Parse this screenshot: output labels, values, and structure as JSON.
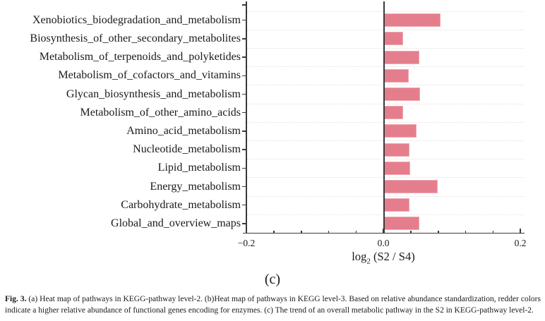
{
  "chart_data": {
    "type": "bar",
    "orientation": "horizontal",
    "title": "",
    "categories": [
      "Xenobiotics_biodegradation_and_metabolism",
      "Biosynthesis_of_other_secondary_metabolites",
      "Metabolism_of_terpenoids_and_polyketides",
      "Metabolism_of_cofactors_and_vitamins",
      "Glycan_biosynthesis_and_metabolism",
      "Metabolism_of_other_amino_acids",
      "Amino_acid_metabolism",
      "Nucleotide_metabolism",
      "Lipid_metabolism",
      "Energy_metabolism",
      "Carbohydrate_metabolism",
      "Global_and_overview_maps"
    ],
    "values": [
      0.084,
      0.029,
      0.053,
      0.037,
      0.054,
      0.029,
      0.048,
      0.038,
      0.039,
      0.079,
      0.038,
      0.053
    ],
    "xlim": [
      -0.2,
      0.2
    ],
    "x_major_ticks": [
      {
        "value": -0.2,
        "label": "−0.2"
      },
      {
        "value": 0.0,
        "label": "0.0"
      },
      {
        "value": 0.2,
        "label": "0.2"
      }
    ],
    "x_minor_tick_values": [
      -0.16,
      -0.12,
      -0.08,
      -0.04,
      0.04,
      0.08,
      0.12,
      0.16
    ],
    "xlabel_parts": {
      "base": "log",
      "sub": "2",
      "rest": " (S2 / S4)"
    },
    "grid": "horizontal-dotted",
    "bar_color": "#e57e8c",
    "bar_border_color": "#f0aab4",
    "axis_color": "#3a3a3a",
    "gridline_color": "#e7dede",
    "panel_label": "(c)"
  },
  "caption": {
    "fig_label": "Fig. 3.",
    "text": " (a) Heat map of pathways in KEGG-pathway level-2. (b)Heat map of pathways in KEGG level-3. Based on relative abundance standardization, redder colors indicate a higher relative abundance of functional genes encoding for enzymes. (c) The trend of an overall metabolic pathway in the S2 in KEGG-pathway level-2."
  }
}
